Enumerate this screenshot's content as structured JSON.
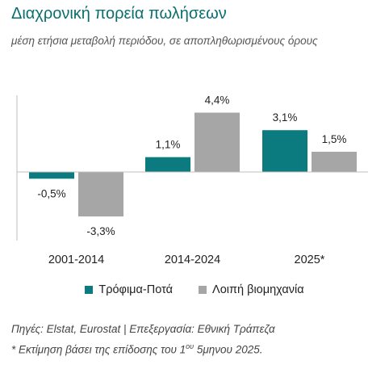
{
  "title": "Διαχρονική πορεία πωλήσεων",
  "subtitle": "μέση ετήσια μεταβολή περιόδου, σε αποπληθωρισμένους όρους",
  "source": "Πηγές: Elstat, Eurostat | Επεξεργασία: Εθνική Τράπεζα",
  "note": {
    "prefix": "* Εκτίμηση βάσει της επίδοσης του 1",
    "superscript": "ου",
    "suffix": " 5μηνου 2025."
  },
  "colors": {
    "series1": "#0b7b7f",
    "series2": "#a6a6a6",
    "title": "#0b6e6e",
    "axis": "#bfbfbf"
  },
  "chart_data": {
    "type": "bar",
    "categories": [
      "2001-2014",
      "2014-2024",
      "2025*"
    ],
    "series": [
      {
        "name": "Τρόφιμα-Ποτά",
        "values": [
          -0.5,
          1.1,
          3.1
        ],
        "labels": [
          "-0,5%",
          "1,1%",
          "3,1%"
        ]
      },
      {
        "name": "Λοιπή βιομηχανία",
        "values": [
          -3.3,
          4.4,
          1.5
        ],
        "labels": [
          "-3,3%",
          "4,4%",
          "1,5%"
        ]
      }
    ],
    "xlabel": "",
    "ylabel": "",
    "ylim": [
      -3.3,
      4.4
    ],
    "grid": false,
    "legend": "bottom"
  }
}
